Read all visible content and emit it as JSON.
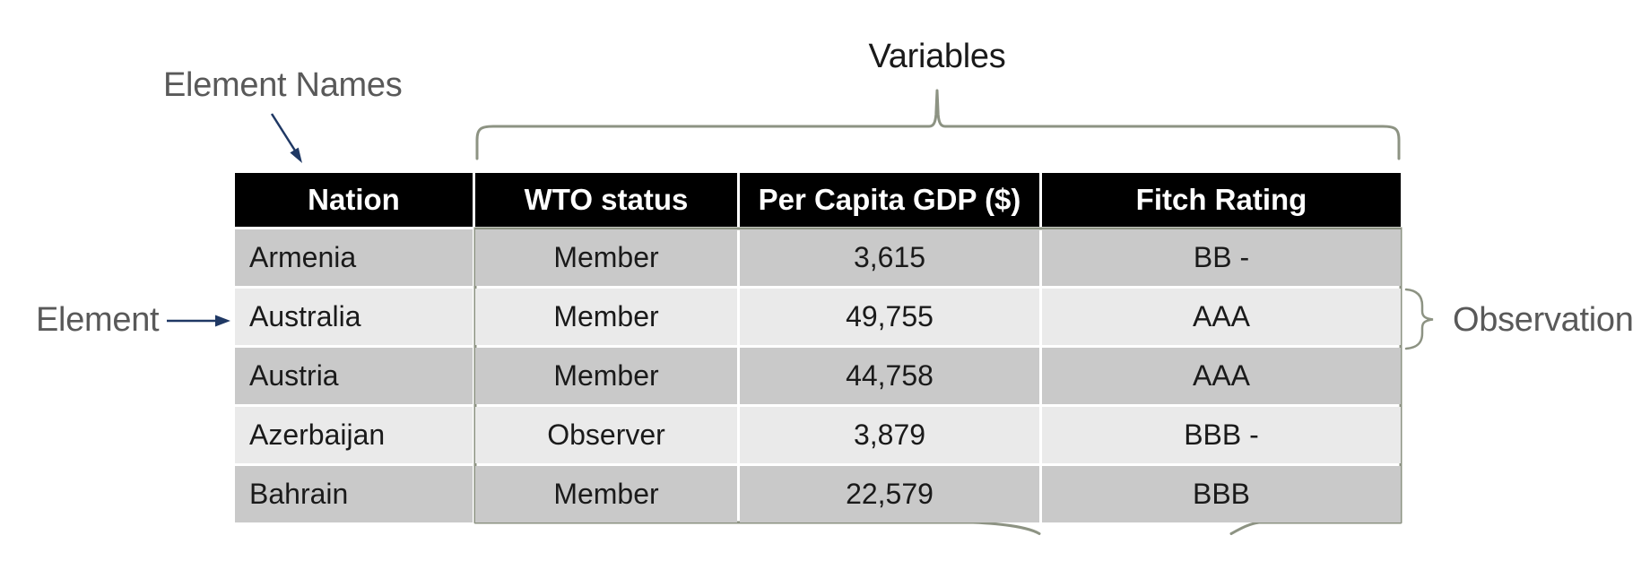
{
  "labels": {
    "element_names": "Element Names",
    "variables": "Variables",
    "element": "Element",
    "observation": "Observation"
  },
  "table": {
    "columns": [
      "Nation",
      "WTO status",
      "Per Capita GDP ($)",
      "Fitch Rating"
    ],
    "rows": [
      [
        "Armenia",
        "Member",
        "3,615",
        "BB -"
      ],
      [
        "Australia",
        "Member",
        "49,755",
        "AAA"
      ],
      [
        "Austria",
        "Member",
        "44,758",
        "AAA"
      ],
      [
        "Azerbaijan",
        "Observer",
        "3,879",
        "BBB -"
      ],
      [
        "Bahrain",
        "Member",
        "22,579",
        "BBB"
      ]
    ]
  },
  "colors": {
    "background": "#ffffff",
    "header_bg": "#000000",
    "header_text": "#ffffff",
    "row_dark": "#c9c9c9",
    "row_light": "#eaeaea",
    "cell_text": "#1a1a1a",
    "label_text": "#595959",
    "title_text": "#1a1a1a",
    "brace": "#8d9383",
    "arrow": "#1f3864"
  }
}
